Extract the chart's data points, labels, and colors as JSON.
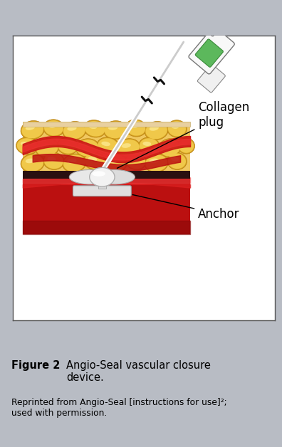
{
  "figure_width": 3.96,
  "figure_height": 6.28,
  "dpi": 100,
  "bg_color": "#b8bcc4",
  "panel_bg": "#ffffff",
  "panel_border_color": "#555555",
  "caption_bold": "Figure 2",
  "caption_text": "  Angio-Seal vascular closure\ndevice.",
  "footnote": "Reprinted from Angio-Seal [instructions for use]²;\nused with permission.",
  "caption_fontsize": 10.5,
  "footnote_fontsize": 8.8,
  "label_collagen": "Collagen\nplug",
  "label_anchor": "Anchor",
  "label_fontsize": 12
}
